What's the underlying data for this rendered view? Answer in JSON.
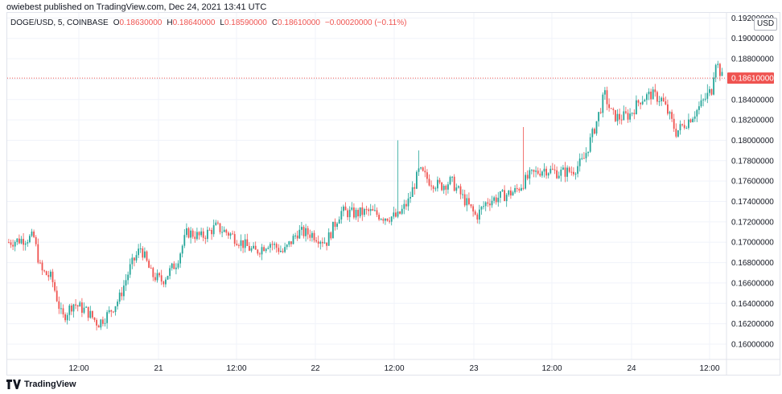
{
  "header": {
    "publish_text": "owiebest published on TradingView.com, Dec 24, 2021 13:41 UTC"
  },
  "symbol_bar": {
    "symbol": "DOGE/USD, 5, COINBASE",
    "open_label": "O",
    "open_value": "0.18630000",
    "high_label": "H",
    "high_value": "0.18640000",
    "low_label": "L",
    "low_value": "0.18590000",
    "close_label": "C",
    "close_value": "0.18610000",
    "change": "−0.00020000 (−0.11%)"
  },
  "currency": "USD",
  "footer": {
    "brand": "TradingView"
  },
  "colors": {
    "up": "#26a69a",
    "down": "#ef5350",
    "grid": "#f0f3fa",
    "price_line": "#ef5350",
    "text": "#131722"
  },
  "chart_data": {
    "type": "candlestick",
    "y_axis": {
      "ticks": [
        "0.19200000",
        "0.19000000",
        "0.18800000",
        "0.18600000",
        "0.18400000",
        "0.18200000",
        "0.18000000",
        "0.17800000",
        "0.17600000",
        "0.17400000",
        "0.17200000",
        "0.17000000",
        "0.16800000",
        "0.16600000",
        "0.16400000",
        "0.16200000",
        "0.16000000"
      ],
      "ylim": [
        0.1585,
        0.1925
      ]
    },
    "x_axis": {
      "ticks": [
        "12:00",
        "21",
        "12:00",
        "22",
        "12:00",
        "23",
        "12:00",
        "24",
        "12:00"
      ]
    },
    "last_price_label": "0.18610000",
    "last_price": 0.1861,
    "grid": true,
    "price_path": [
      [
        0.0,
        0.17
      ],
      [
        0.035,
        0.1705
      ],
      [
        0.045,
        0.1672
      ],
      [
        0.06,
        0.1665
      ],
      [
        0.075,
        0.1625
      ],
      [
        0.09,
        0.164
      ],
      [
        0.11,
        0.1632
      ],
      [
        0.125,
        0.162
      ],
      [
        0.14,
        0.163
      ],
      [
        0.155,
        0.1645
      ],
      [
        0.17,
        0.1675
      ],
      [
        0.185,
        0.1695
      ],
      [
        0.2,
        0.1668
      ],
      [
        0.215,
        0.1662
      ],
      [
        0.235,
        0.168
      ],
      [
        0.25,
        0.171
      ],
      [
        0.27,
        0.1705
      ],
      [
        0.29,
        0.1715
      ],
      [
        0.31,
        0.1708
      ],
      [
        0.325,
        0.17
      ],
      [
        0.345,
        0.169
      ],
      [
        0.365,
        0.17
      ],
      [
        0.385,
        0.169
      ],
      [
        0.405,
        0.171
      ],
      [
        0.425,
        0.1708
      ],
      [
        0.445,
        0.17
      ],
      [
        0.465,
        0.173
      ],
      [
        0.485,
        0.1728
      ],
      [
        0.505,
        0.173
      ],
      [
        0.525,
        0.1725
      ],
      [
        0.545,
        0.1725
      ],
      [
        0.56,
        0.174
      ],
      [
        0.575,
        0.177
      ],
      [
        0.59,
        0.176
      ],
      [
        0.605,
        0.1755
      ],
      [
        0.62,
        0.176
      ],
      [
        0.64,
        0.174
      ],
      [
        0.655,
        0.1725
      ],
      [
        0.67,
        0.174
      ],
      [
        0.69,
        0.1745
      ],
      [
        0.71,
        0.175
      ],
      [
        0.73,
        0.1765
      ],
      [
        0.75,
        0.1772
      ],
      [
        0.77,
        0.1768
      ],
      [
        0.79,
        0.177
      ],
      [
        0.805,
        0.178
      ],
      [
        0.82,
        0.181
      ],
      [
        0.835,
        0.1845
      ],
      [
        0.845,
        0.1825
      ],
      [
        0.855,
        0.1822
      ],
      [
        0.87,
        0.1825
      ],
      [
        0.885,
        0.184
      ],
      [
        0.9,
        0.1845
      ],
      [
        0.915,
        0.184
      ],
      [
        0.925,
        0.1825
      ],
      [
        0.935,
        0.1808
      ],
      [
        0.95,
        0.1818
      ],
      [
        0.965,
        0.183
      ],
      [
        0.975,
        0.184
      ],
      [
        0.985,
        0.185
      ],
      [
        0.99,
        0.188
      ],
      [
        1.0,
        0.1861
      ]
    ],
    "spikes": [
      [
        0.545,
        0.18
      ],
      [
        0.575,
        0.179
      ],
      [
        0.72,
        0.1813
      ],
      [
        0.98,
        0.1855
      ]
    ]
  }
}
